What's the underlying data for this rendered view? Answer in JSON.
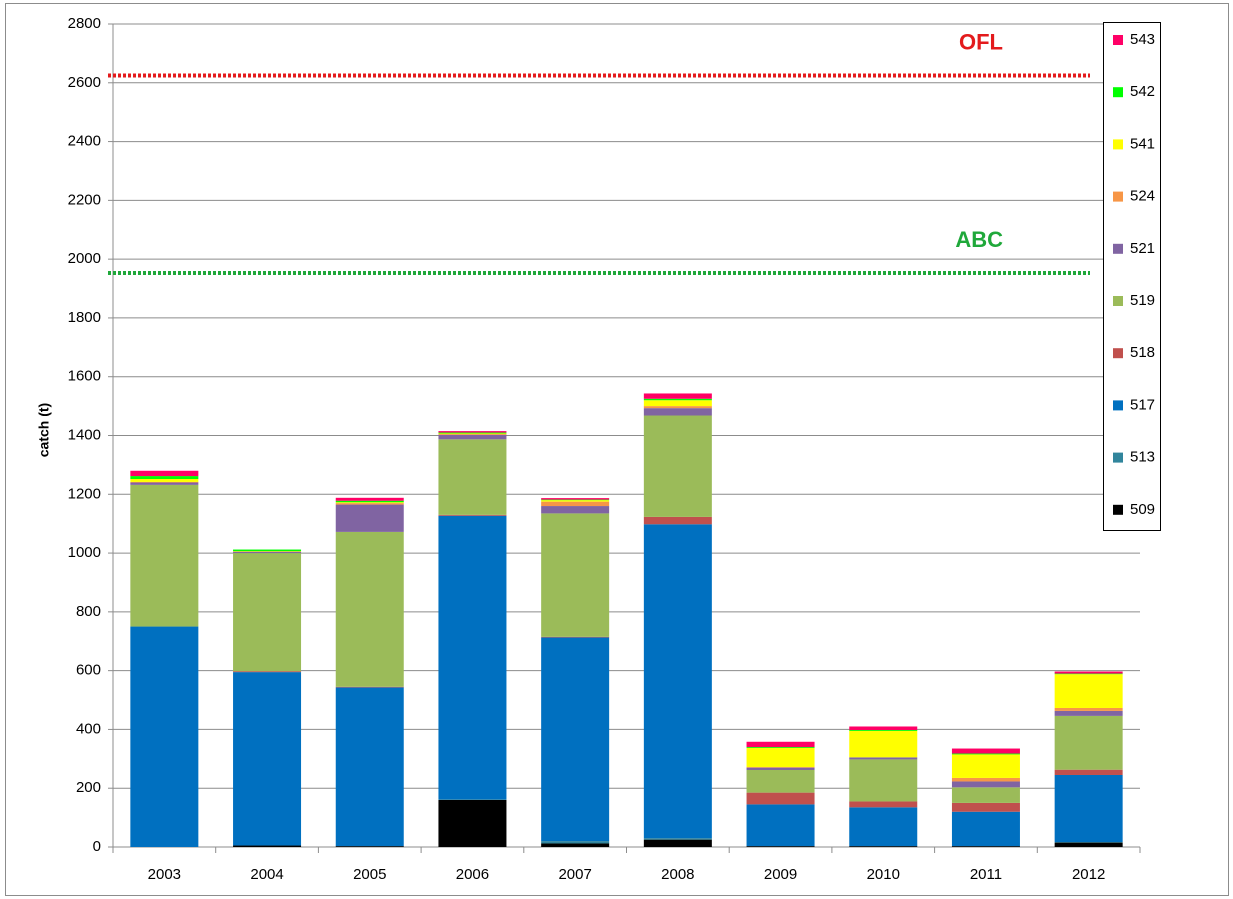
{
  "chart_data": {
    "type": "stacked_bar",
    "y_label": "catch (t)",
    "categories": [
      "2003",
      "2004",
      "2005",
      "2006",
      "2007",
      "2008",
      "2009",
      "2010",
      "2011",
      "2012"
    ],
    "series": [
      {
        "name": "509",
        "color": "#000000",
        "values": [
          0,
          5,
          3,
          160,
          12,
          25,
          3,
          3,
          3,
          15
        ]
      },
      {
        "name": "513",
        "color": "#31859c",
        "values": [
          0,
          0,
          0,
          2,
          8,
          5,
          0,
          0,
          0,
          2
        ]
      },
      {
        "name": "517",
        "color": "#0070c0",
        "values": [
          750,
          590,
          540,
          965,
          693,
          1068,
          142,
          132,
          117,
          228
        ]
      },
      {
        "name": "518",
        "color": "#c0504d",
        "values": [
          0,
          3,
          2,
          3,
          2,
          25,
          40,
          20,
          30,
          18
        ]
      },
      {
        "name": "519",
        "color": "#9bbb59",
        "values": [
          482,
          402,
          527,
          257,
          420,
          345,
          77,
          143,
          53,
          183
        ]
      },
      {
        "name": "521",
        "color": "#8064a2",
        "values": [
          8,
          5,
          93,
          15,
          25,
          25,
          8,
          7,
          20,
          17
        ]
      },
      {
        "name": "524",
        "color": "#f79646",
        "values": [
          2,
          0,
          5,
          3,
          15,
          7,
          2,
          0,
          12,
          10
        ]
      },
      {
        "name": "541",
        "color": "#ffff00",
        "values": [
          10,
          2,
          3,
          2,
          5,
          20,
          65,
          90,
          80,
          115
        ]
      },
      {
        "name": "542",
        "color": "#00ff00",
        "values": [
          10,
          5,
          5,
          3,
          2,
          5,
          3,
          3,
          3,
          2
        ]
      },
      {
        "name": "543",
        "color": "#ff0066",
        "values": [
          18,
          0,
          10,
          5,
          5,
          18,
          18,
          12,
          17,
          7
        ]
      }
    ],
    "reference_lines": [
      {
        "label": "OFL",
        "value": 2625,
        "color": "#e31a1c"
      },
      {
        "label": "ABC",
        "value": 1953,
        "color": "#1fa83a"
      }
    ],
    "ylim": [
      0,
      2800
    ],
    "yticks": [
      0,
      200,
      400,
      600,
      800,
      1000,
      1200,
      1400,
      1600,
      1800,
      2000,
      2200,
      2400,
      2600,
      2800
    ],
    "grid": true
  }
}
